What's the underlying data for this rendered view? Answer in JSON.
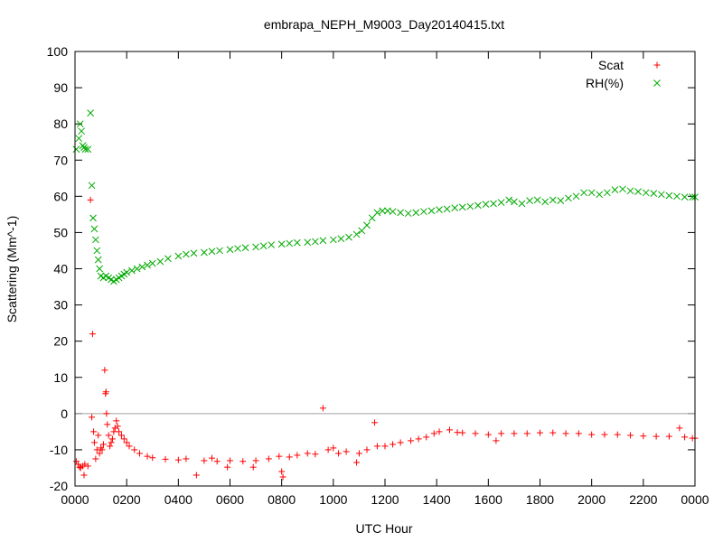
{
  "chart_data": {
    "type": "scatter",
    "title": "embrapa_NEPH_M9003_Day20140415.txt",
    "xlabel": "UTC Hour",
    "ylabel": "Scattering (Mm^-1)",
    "xlim": [
      0,
      24
    ],
    "ylim": [
      -20,
      100
    ],
    "x_ticks": [
      "0000",
      "0200",
      "0400",
      "0600",
      "0800",
      "1000",
      "1200",
      "1400",
      "1600",
      "1800",
      "2000",
      "2200",
      "0000"
    ],
    "y_ticks": [
      "-20",
      "-10",
      "0",
      "10",
      "20",
      "30",
      "40",
      "50",
      "60",
      "70",
      "80",
      "90",
      "100"
    ],
    "zero_line": true,
    "grid": false,
    "legend_position": "top-right",
    "series": [
      {
        "name": "Scat",
        "marker": "plus",
        "color": "#ff0000",
        "points": [
          [
            0.05,
            -13.2
          ],
          [
            0.12,
            -14.0
          ],
          [
            0.18,
            -14.8
          ],
          [
            0.22,
            -15.0
          ],
          [
            0.3,
            -14.5
          ],
          [
            0.35,
            -17.0
          ],
          [
            0.38,
            -14.0
          ],
          [
            0.5,
            -14.5
          ],
          [
            0.6,
            59.0
          ],
          [
            0.65,
            -1.0
          ],
          [
            0.68,
            22.0
          ],
          [
            0.72,
            -5.0
          ],
          [
            0.75,
            -8.0
          ],
          [
            0.8,
            -12.5
          ],
          [
            0.85,
            -10.0
          ],
          [
            0.9,
            -6.0
          ],
          [
            0.95,
            -11.0
          ],
          [
            1.0,
            -9.5
          ],
          [
            1.05,
            -10.0
          ],
          [
            1.1,
            -8.5
          ],
          [
            1.15,
            12.0
          ],
          [
            1.18,
            5.5
          ],
          [
            1.2,
            6.0
          ],
          [
            1.22,
            0.0
          ],
          [
            1.25,
            -3.0
          ],
          [
            1.3,
            -6.0
          ],
          [
            1.35,
            -9.0
          ],
          [
            1.4,
            -8.0
          ],
          [
            1.45,
            -7.0
          ],
          [
            1.5,
            -5.0
          ],
          [
            1.55,
            -4.0
          ],
          [
            1.6,
            -2.0
          ],
          [
            1.65,
            -3.5
          ],
          [
            1.7,
            -5.0
          ],
          [
            1.8,
            -6.0
          ],
          [
            1.9,
            -7.0
          ],
          [
            2.0,
            -8.0
          ],
          [
            2.1,
            -9.0
          ],
          [
            2.3,
            -10.0
          ],
          [
            2.5,
            -11.0
          ],
          [
            2.8,
            -11.8
          ],
          [
            3.0,
            -12.2
          ],
          [
            3.5,
            -12.6
          ],
          [
            4.0,
            -12.8
          ],
          [
            4.3,
            -12.5
          ],
          [
            4.7,
            -17.0
          ],
          [
            5.0,
            -13.0
          ],
          [
            5.3,
            -12.3
          ],
          [
            5.5,
            -13.2
          ],
          [
            5.9,
            -14.8
          ],
          [
            6.0,
            -13.0
          ],
          [
            6.5,
            -13.2
          ],
          [
            6.9,
            -14.8
          ],
          [
            7.0,
            -13.0
          ],
          [
            7.5,
            -12.5
          ],
          [
            7.9,
            -11.8
          ],
          [
            8.0,
            -16.0
          ],
          [
            8.05,
            -17.5
          ],
          [
            8.3,
            -12.0
          ],
          [
            8.6,
            -11.5
          ],
          [
            9.0,
            -11.0
          ],
          [
            9.3,
            -11.2
          ],
          [
            9.6,
            1.5
          ],
          [
            9.8,
            -10.0
          ],
          [
            10.0,
            -9.5
          ],
          [
            10.2,
            -11.0
          ],
          [
            10.5,
            -10.5
          ],
          [
            10.9,
            -13.5
          ],
          [
            11.0,
            -11.0
          ],
          [
            11.3,
            -10.0
          ],
          [
            11.6,
            -2.5
          ],
          [
            11.7,
            -9.0
          ],
          [
            12.0,
            -9.0
          ],
          [
            12.3,
            -8.5
          ],
          [
            12.6,
            -8.0
          ],
          [
            13.0,
            -7.5
          ],
          [
            13.3,
            -7.0
          ],
          [
            13.6,
            -6.5
          ],
          [
            13.9,
            -5.5
          ],
          [
            14.1,
            -5.0
          ],
          [
            14.5,
            -4.5
          ],
          [
            14.8,
            -5.2
          ],
          [
            15.0,
            -5.3
          ],
          [
            15.5,
            -5.5
          ],
          [
            16.0,
            -5.8
          ],
          [
            16.3,
            -7.5
          ],
          [
            16.5,
            -5.5
          ],
          [
            17.0,
            -5.5
          ],
          [
            17.5,
            -5.5
          ],
          [
            18.0,
            -5.3
          ],
          [
            18.5,
            -5.3
          ],
          [
            19.0,
            -5.5
          ],
          [
            19.5,
            -5.5
          ],
          [
            20.0,
            -5.8
          ],
          [
            20.5,
            -5.8
          ],
          [
            21.0,
            -5.8
          ],
          [
            21.5,
            -6.0
          ],
          [
            22.0,
            -6.2
          ],
          [
            22.5,
            -6.3
          ],
          [
            23.0,
            -6.3
          ],
          [
            23.4,
            -4.0
          ],
          [
            23.6,
            -6.5
          ],
          [
            23.9,
            -6.8
          ],
          [
            24.0,
            -6.8
          ]
        ]
      },
      {
        "name": "RH(%)",
        "marker": "cross",
        "color": "#00aa00",
        "points": [
          [
            0.05,
            73.0
          ],
          [
            0.15,
            76.0
          ],
          [
            0.2,
            80.0
          ],
          [
            0.25,
            78.0
          ],
          [
            0.3,
            74.0
          ],
          [
            0.35,
            73.5
          ],
          [
            0.4,
            73.0
          ],
          [
            0.5,
            73.0
          ],
          [
            0.6,
            83.0
          ],
          [
            0.65,
            63.0
          ],
          [
            0.7,
            54.0
          ],
          [
            0.75,
            51.0
          ],
          [
            0.8,
            48.0
          ],
          [
            0.85,
            45.0
          ],
          [
            0.9,
            42.5
          ],
          [
            0.95,
            40.0
          ],
          [
            1.0,
            38.0
          ],
          [
            1.1,
            37.5
          ],
          [
            1.2,
            38.0
          ],
          [
            1.3,
            37.5
          ],
          [
            1.4,
            37.0
          ],
          [
            1.5,
            36.5
          ],
          [
            1.6,
            37.0
          ],
          [
            1.7,
            37.5
          ],
          [
            1.8,
            38.0
          ],
          [
            1.9,
            38.5
          ],
          [
            2.0,
            39.0
          ],
          [
            2.2,
            39.5
          ],
          [
            2.4,
            40.0
          ],
          [
            2.6,
            40.5
          ],
          [
            2.8,
            41.0
          ],
          [
            3.0,
            41.5
          ],
          [
            3.3,
            42.0
          ],
          [
            3.6,
            42.8
          ],
          [
            4.0,
            43.5
          ],
          [
            4.3,
            44.0
          ],
          [
            4.6,
            44.3
          ],
          [
            5.0,
            44.5
          ],
          [
            5.3,
            44.8
          ],
          [
            5.6,
            45.0
          ],
          [
            6.0,
            45.3
          ],
          [
            6.3,
            45.6
          ],
          [
            6.6,
            45.8
          ],
          [
            7.0,
            46.0
          ],
          [
            7.3,
            46.3
          ],
          [
            7.6,
            46.6
          ],
          [
            8.0,
            46.8
          ],
          [
            8.3,
            47.0
          ],
          [
            8.6,
            47.2
          ],
          [
            9.0,
            47.3
          ],
          [
            9.3,
            47.5
          ],
          [
            9.6,
            47.8
          ],
          [
            10.0,
            48.0
          ],
          [
            10.3,
            48.3
          ],
          [
            10.6,
            48.7
          ],
          [
            10.9,
            49.5
          ],
          [
            11.1,
            50.5
          ],
          [
            11.3,
            52.0
          ],
          [
            11.5,
            54.0
          ],
          [
            11.7,
            55.5
          ],
          [
            11.9,
            56.0
          ],
          [
            12.1,
            56.0
          ],
          [
            12.3,
            55.8
          ],
          [
            12.6,
            55.5
          ],
          [
            12.9,
            55.3
          ],
          [
            13.2,
            55.5
          ],
          [
            13.5,
            55.8
          ],
          [
            13.8,
            56.0
          ],
          [
            14.1,
            56.3
          ],
          [
            14.4,
            56.5
          ],
          [
            14.7,
            56.8
          ],
          [
            15.0,
            57.0
          ],
          [
            15.3,
            57.2
          ],
          [
            15.6,
            57.5
          ],
          [
            15.9,
            57.8
          ],
          [
            16.2,
            58.0
          ],
          [
            16.5,
            58.3
          ],
          [
            16.8,
            59.0
          ],
          [
            17.0,
            58.5
          ],
          [
            17.3,
            58.0
          ],
          [
            17.6,
            58.8
          ],
          [
            17.9,
            59.0
          ],
          [
            18.2,
            58.5
          ],
          [
            18.5,
            59.0
          ],
          [
            18.8,
            58.8
          ],
          [
            19.1,
            59.5
          ],
          [
            19.4,
            60.0
          ],
          [
            19.7,
            61.0
          ],
          [
            20.0,
            61.0
          ],
          [
            20.3,
            60.5
          ],
          [
            20.6,
            61.0
          ],
          [
            20.9,
            61.8
          ],
          [
            21.2,
            62.0
          ],
          [
            21.5,
            61.5
          ],
          [
            21.8,
            61.3
          ],
          [
            22.1,
            61.0
          ],
          [
            22.4,
            60.8
          ],
          [
            22.7,
            60.5
          ],
          [
            23.0,
            60.2
          ],
          [
            23.3,
            60.0
          ],
          [
            23.6,
            59.8
          ],
          [
            23.9,
            59.8
          ],
          [
            24.0,
            59.8
          ]
        ]
      }
    ]
  }
}
